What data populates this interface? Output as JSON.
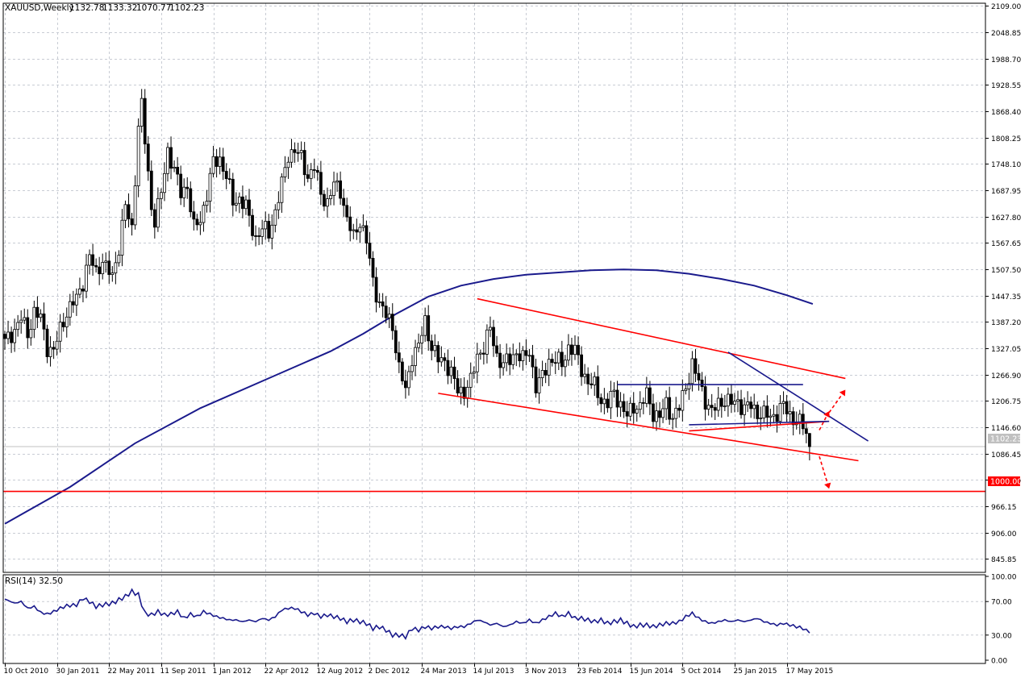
{
  "header": {
    "symbol": "XAUUSD,Weekly",
    "open": "1132.78",
    "high": "1133.32",
    "low": "1070.77",
    "close": "1102.23"
  },
  "rsi": {
    "label": "RSI(14) 32.50",
    "levels": [
      "100.00",
      "70.00",
      "30.00",
      "0.00"
    ]
  },
  "price_labels": {
    "current": "1102.23",
    "level_1000": "1000.00"
  },
  "colors": {
    "background": "#ffffff",
    "grid": "#c8ccd4",
    "candle": "#000000",
    "ma": "#1a1a8c",
    "trendline_red": "#ff0000",
    "trendline_blue": "#1a1a8c",
    "rsi_line": "#1a1a8c",
    "current_price_label_bg": "#c0c0c0",
    "level_label_bg": "#ff0000"
  },
  "chart_data": {
    "type": "candlestick",
    "instrument": "XAUUSD",
    "timeframe": "Weekly",
    "grid": true,
    "y_ticks": [
      2109.0,
      2048.85,
      1988.7,
      1928.55,
      1868.4,
      1808.25,
      1748.1,
      1687.95,
      1627.8,
      1567.65,
      1507.5,
      1447.35,
      1387.2,
      1327.05,
      1266.9,
      1206.75,
      1146.6,
      1086.45,
      1026.3,
      966.15,
      906.0,
      845.85
    ],
    "y_tick_labels": [
      "2109.00",
      "2048.85",
      "1988.70",
      "1928.55",
      "1868.40",
      "1808.25",
      "1748.10",
      "1687.95",
      "1627.80",
      "1567.65",
      "1507.50",
      "1447.35",
      "1387.20",
      "1327.05",
      "1266.90",
      "1206.75",
      "1146.60",
      "1086.45",
      "1026.30",
      "966.15",
      "906.00",
      "845.85"
    ],
    "ylim": [
      815.0,
      2115.0
    ],
    "x_tick_labels": [
      "10 Oct 2010",
      "30 Jan 2011",
      "22 May 2011",
      "11 Sep 2011",
      "1 Jan 2012",
      "22 Apr 2012",
      "12 Aug 2012",
      "2 Dec 2012",
      "24 Mar 2013",
      "14 Jul 2013",
      "3 Nov 2013",
      "23 Feb 2014",
      "15 Jun 2014",
      "5 Oct 2014",
      "25 Jan 2015",
      "17 May 2015"
    ],
    "x_tick_weeks": [
      0,
      16,
      32,
      48,
      64,
      80,
      96,
      112,
      128,
      144,
      160,
      176,
      192,
      208,
      224,
      240
    ],
    "candle_anchors": [
      [
        0,
        1340
      ],
      [
        3,
        1370
      ],
      [
        5,
        1395
      ],
      [
        7,
        1360
      ],
      [
        9,
        1410
      ],
      [
        11,
        1395
      ],
      [
        13,
        1330
      ],
      [
        15,
        1320
      ],
      [
        17,
        1370
      ],
      [
        19,
        1410
      ],
      [
        22,
        1440
      ],
      [
        24,
        1480
      ],
      [
        26,
        1535
      ],
      [
        28,
        1500
      ],
      [
        30,
        1530
      ],
      [
        31,
        1510
      ],
      [
        33,
        1490
      ],
      [
        35,
        1560
      ],
      [
        37,
        1650
      ],
      [
        39,
        1600
      ],
      [
        41,
        1835
      ],
      [
        42,
        1880
      ],
      [
        43,
        1800
      ],
      [
        45,
        1650
      ],
      [
        46,
        1620
      ],
      [
        48,
        1680
      ],
      [
        50,
        1780
      ],
      [
        52,
        1735
      ],
      [
        54,
        1680
      ],
      [
        56,
        1700
      ],
      [
        58,
        1600
      ],
      [
        60,
        1620
      ],
      [
        62,
        1680
      ],
      [
        64,
        1750
      ],
      [
        66,
        1760
      ],
      [
        68,
        1720
      ],
      [
        70,
        1660
      ],
      [
        72,
        1670
      ],
      [
        74,
        1650
      ],
      [
        75,
        1620
      ],
      [
        77,
        1580
      ],
      [
        79,
        1600
      ],
      [
        81,
        1590
      ],
      [
        83,
        1640
      ],
      [
        85,
        1700
      ],
      [
        87,
        1770
      ],
      [
        89,
        1780
      ],
      [
        91,
        1760
      ],
      [
        93,
        1720
      ],
      [
        95,
        1740
      ],
      [
        97,
        1680
      ],
      [
        99,
        1660
      ],
      [
        101,
        1700
      ],
      [
        103,
        1690
      ],
      [
        105,
        1620
      ],
      [
        107,
        1580
      ],
      [
        109,
        1620
      ],
      [
        111,
        1570
      ],
      [
        113,
        1480
      ],
      [
        115,
        1430
      ],
      [
        117,
        1400
      ],
      [
        119,
        1380
      ],
      [
        121,
        1280
      ],
      [
        123,
        1230
      ],
      [
        125,
        1310
      ],
      [
        127,
        1330
      ],
      [
        129,
        1390
      ],
      [
        131,
        1330
      ],
      [
        133,
        1300
      ],
      [
        135,
        1300
      ],
      [
        137,
        1270
      ],
      [
        139,
        1230
      ],
      [
        141,
        1230
      ],
      [
        143,
        1250
      ],
      [
        145,
        1310
      ],
      [
        147,
        1330
      ],
      [
        149,
        1370
      ],
      [
        151,
        1310
      ],
      [
        153,
        1290
      ],
      [
        155,
        1300
      ],
      [
        157,
        1320
      ],
      [
        159,
        1300
      ],
      [
        161,
        1320
      ],
      [
        163,
        1240
      ],
      [
        165,
        1260
      ],
      [
        167,
        1300
      ],
      [
        169,
        1300
      ],
      [
        171,
        1290
      ],
      [
        173,
        1330
      ],
      [
        175,
        1320
      ],
      [
        177,
        1280
      ],
      [
        179,
        1250
      ],
      [
        181,
        1240
      ],
      [
        183,
        1210
      ],
      [
        185,
        1200
      ],
      [
        187,
        1225
      ],
      [
        189,
        1200
      ],
      [
        191,
        1170
      ],
      [
        193,
        1195
      ],
      [
        195,
        1195
      ],
      [
        197,
        1220
      ],
      [
        199,
        1180
      ],
      [
        201,
        1170
      ],
      [
        203,
        1200
      ],
      [
        205,
        1170
      ],
      [
        207,
        1190
      ],
      [
        209,
        1240
      ],
      [
        211,
        1290
      ],
      [
        213,
        1250
      ],
      [
        215,
        1210
      ],
      [
        217,
        1180
      ],
      [
        219,
        1200
      ],
      [
        221,
        1210
      ],
      [
        223,
        1200
      ],
      [
        225,
        1205
      ],
      [
        227,
        1190
      ],
      [
        229,
        1195
      ],
      [
        231,
        1180
      ],
      [
        233,
        1175
      ],
      [
        235,
        1170
      ],
      [
        237,
        1180
      ],
      [
        239,
        1195
      ],
      [
        241,
        1175
      ],
      [
        243,
        1160
      ],
      [
        245,
        1150
      ],
      [
        246,
        1132
      ],
      [
        247,
        1102
      ]
    ],
    "ma": {
      "points": [
        [
          0,
          926
        ],
        [
          20,
          1010
        ],
        [
          40,
          1110
        ],
        [
          60,
          1190
        ],
        [
          80,
          1255
        ],
        [
          100,
          1320
        ],
        [
          110,
          1360
        ],
        [
          120,
          1405
        ],
        [
          130,
          1445
        ],
        [
          140,
          1470
        ],
        [
          150,
          1485
        ],
        [
          160,
          1495
        ],
        [
          170,
          1500
        ],
        [
          180,
          1505
        ],
        [
          190,
          1507
        ],
        [
          200,
          1505
        ],
        [
          210,
          1497
        ],
        [
          220,
          1485
        ],
        [
          230,
          1470
        ],
        [
          240,
          1448
        ],
        [
          248,
          1428
        ]
      ]
    },
    "trendlines": [
      {
        "color": "red",
        "points": [
          [
            145,
            1440
          ],
          [
            258,
            1258
          ]
        ]
      },
      {
        "color": "red",
        "points": [
          [
            133,
            1224
          ],
          [
            262,
            1070
          ]
        ]
      },
      {
        "color": "red",
        "points": [
          [
            0,
            1000
          ],
          [
            1276,
            1000
          ]
        ],
        "pixel_x": true
      },
      {
        "color": "red",
        "points": [
          [
            210,
            1138
          ],
          [
            253,
            1160
          ]
        ]
      },
      {
        "color": "blue",
        "points": [
          [
            222,
            1318
          ],
          [
            265,
            1115
          ]
        ]
      },
      {
        "color": "blue",
        "points": [
          [
            188,
            1244
          ],
          [
            245,
            1244
          ]
        ]
      },
      {
        "color": "blue",
        "points": [
          [
            210,
            1152
          ],
          [
            253,
            1160
          ]
        ]
      }
    ],
    "current_price": 1102.23,
    "horizontal_level": 1000.0,
    "rsi_series": {
      "period": 14,
      "ylim": [
        0,
        100
      ],
      "ticks": [
        100,
        70,
        30,
        0
      ],
      "anchors": [
        [
          0,
          73
        ],
        [
          3,
          68
        ],
        [
          5,
          70
        ],
        [
          7,
          62
        ],
        [
          9,
          64
        ],
        [
          11,
          57
        ],
        [
          13,
          55
        ],
        [
          15,
          58
        ],
        [
          17,
          62
        ],
        [
          19,
          65
        ],
        [
          22,
          66
        ],
        [
          24,
          74
        ],
        [
          26,
          70
        ],
        [
          28,
          64
        ],
        [
          30,
          66
        ],
        [
          33,
          68
        ],
        [
          35,
          72
        ],
        [
          37,
          76
        ],
        [
          39,
          82
        ],
        [
          41,
          78
        ],
        [
          43,
          56
        ],
        [
          45,
          54
        ],
        [
          47,
          58
        ],
        [
          49,
          54
        ],
        [
          51,
          55
        ],
        [
          53,
          58
        ],
        [
          55,
          50
        ],
        [
          57,
          55
        ],
        [
          59,
          52
        ],
        [
          61,
          58
        ],
        [
          63,
          55
        ],
        [
          65,
          52
        ],
        [
          67,
          50
        ],
        [
          69,
          48
        ],
        [
          71,
          48
        ],
        [
          73,
          46
        ],
        [
          75,
          48
        ],
        [
          77,
          46
        ],
        [
          79,
          50
        ],
        [
          81,
          48
        ],
        [
          83,
          52
        ],
        [
          85,
          60
        ],
        [
          87,
          62
        ],
        [
          89,
          62
        ],
        [
          91,
          58
        ],
        [
          93,
          54
        ],
        [
          95,
          56
        ],
        [
          97,
          52
        ],
        [
          99,
          54
        ],
        [
          101,
          52
        ],
        [
          103,
          50
        ],
        [
          105,
          46
        ],
        [
          107,
          48
        ],
        [
          109,
          46
        ],
        [
          111,
          44
        ],
        [
          113,
          38
        ],
        [
          115,
          40
        ],
        [
          117,
          36
        ],
        [
          119,
          30
        ],
        [
          121,
          30
        ],
        [
          123,
          28
        ],
        [
          125,
          38
        ],
        [
          127,
          36
        ],
        [
          129,
          40
        ],
        [
          131,
          38
        ],
        [
          133,
          40
        ],
        [
          135,
          40
        ],
        [
          137,
          38
        ],
        [
          139,
          40
        ],
        [
          141,
          40
        ],
        [
          143,
          44
        ],
        [
          145,
          48
        ],
        [
          147,
          46
        ],
        [
          149,
          42
        ],
        [
          151,
          44
        ],
        [
          153,
          40
        ],
        [
          155,
          42
        ],
        [
          157,
          46
        ],
        [
          159,
          44
        ],
        [
          161,
          48
        ],
        [
          163,
          44
        ],
        [
          165,
          48
        ],
        [
          167,
          52
        ],
        [
          169,
          56
        ],
        [
          171,
          52
        ],
        [
          173,
          56
        ],
        [
          175,
          50
        ],
        [
          177,
          50
        ],
        [
          179,
          48
        ],
        [
          181,
          46
        ],
        [
          183,
          48
        ],
        [
          185,
          44
        ],
        [
          187,
          46
        ],
        [
          189,
          48
        ],
        [
          191,
          44
        ],
        [
          193,
          40
        ],
        [
          195,
          42
        ],
        [
          197,
          42
        ],
        [
          199,
          40
        ],
        [
          201,
          42
        ],
        [
          203,
          44
        ],
        [
          205,
          44
        ],
        [
          207,
          46
        ],
        [
          209,
          52
        ],
        [
          211,
          56
        ],
        [
          213,
          50
        ],
        [
          215,
          46
        ],
        [
          217,
          44
        ],
        [
          219,
          46
        ],
        [
          221,
          48
        ],
        [
          223,
          46
        ],
        [
          225,
          48
        ],
        [
          227,
          46
        ],
        [
          229,
          48
        ],
        [
          231,
          50
        ],
        [
          233,
          46
        ],
        [
          235,
          44
        ],
        [
          237,
          42
        ],
        [
          239,
          44
        ],
        [
          241,
          42
        ],
        [
          243,
          40
        ],
        [
          245,
          38
        ],
        [
          247,
          32.5
        ]
      ]
    }
  }
}
